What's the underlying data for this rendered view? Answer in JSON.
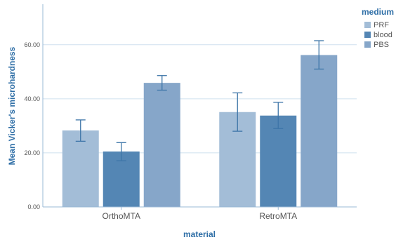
{
  "chart_data": {
    "type": "bar",
    "xlabel": "material",
    "ylabel": "Mean Vicker's microhardness",
    "categories": [
      "OrthoMTA",
      "RetroMTA"
    ],
    "ylim": [
      0,
      75
    ],
    "yticks": [
      "0.00",
      "20.00",
      "40.00",
      "60.00"
    ],
    "grid": true,
    "legend": {
      "title": "medium",
      "position": "top-right"
    },
    "series": [
      {
        "name": "PRF",
        "color": "#a3bdd7",
        "values": [
          28.3,
          35.1
        ],
        "error_low": [
          24.3,
          28.0
        ],
        "error_high": [
          32.2,
          42.2
        ]
      },
      {
        "name": "blood",
        "color": "#5486b4",
        "values": [
          20.5,
          33.8
        ],
        "error_low": [
          17.1,
          29.0
        ],
        "error_high": [
          23.8,
          38.7
        ]
      },
      {
        "name": "PBS",
        "color": "#86a6c9",
        "values": [
          45.9,
          56.2
        ],
        "error_low": [
          43.2,
          51.0
        ],
        "error_high": [
          48.6,
          61.5
        ]
      }
    ]
  }
}
